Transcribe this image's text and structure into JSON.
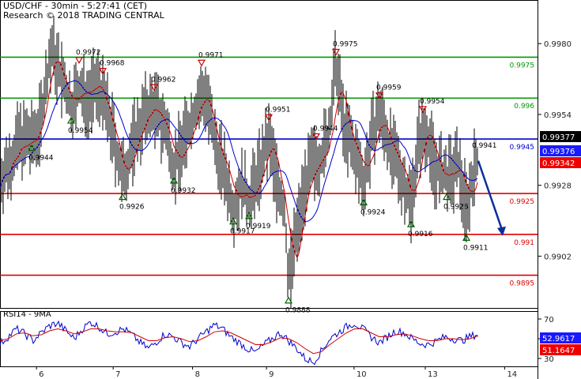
{
  "header": {
    "line1": "USD/CHF - 30min - 5:27:41 (CET)",
    "line2": "Research © 2018 TRADING CENTRAL"
  },
  "rsi_label": "RSI14 - 9MA",
  "colors": {
    "support": "#e00000",
    "resistance": "#009900",
    "pivot": "#0000cc",
    "price": "#000000",
    "ma_fast": "#cc0000",
    "ma_slow": "#0000cc",
    "marker_down": "#cc0000",
    "marker_up": "#006600",
    "arrow": "#0b2f9a",
    "badge_last": "#000000",
    "badge_blue": "#1a1aff",
    "badge_red": "#ee0000"
  },
  "chart_data": [
    {
      "type": "line",
      "name": "price",
      "x_ticks": [
        "6",
        "7",
        "8",
        "9",
        "10",
        "13",
        "14"
      ],
      "y_ticks": [
        "0.9980",
        "0.9954",
        "0.9928",
        "0.9902"
      ],
      "ylim": [
        0.9883,
        0.9996
      ],
      "levels": [
        {
          "value": 0.9975,
          "label": "0.9975",
          "kind": "resistance"
        },
        {
          "value": 0.996,
          "label": "0.996",
          "kind": "resistance"
        },
        {
          "value": 0.9945,
          "label": "0.9945",
          "kind": "pivot"
        },
        {
          "value": 0.9925,
          "label": "0.9925",
          "kind": "support"
        },
        {
          "value": 0.991,
          "label": "0.991",
          "kind": "support"
        },
        {
          "value": 0.9895,
          "label": "0.9895",
          "kind": "support"
        }
      ],
      "markers": [
        {
          "x": 1.0,
          "value": 0.9972,
          "label": "0.9972",
          "dir": "down"
        },
        {
          "x": 1.3,
          "value": 0.9968,
          "label": "0.9968",
          "dir": "down"
        },
        {
          "x": 0.9,
          "value": 0.9954,
          "label": "0.9954",
          "dir": "up"
        },
        {
          "x": 0.4,
          "value": 0.9944,
          "label": "0.9944",
          "dir": "up"
        },
        {
          "x": 1.55,
          "value": 0.9926,
          "label": "0.9926",
          "dir": "up"
        },
        {
          "x": 1.95,
          "value": 0.9962,
          "label": "0.9962",
          "dir": "down"
        },
        {
          "x": 2.2,
          "value": 0.9932,
          "label": "0.9932",
          "dir": "up"
        },
        {
          "x": 2.55,
          "value": 0.9971,
          "label": "0.9971",
          "dir": "down"
        },
        {
          "x": 2.95,
          "value": 0.9917,
          "label": "0.9917",
          "dir": "up"
        },
        {
          "x": 3.15,
          "value": 0.9919,
          "label": "0.9919",
          "dir": "up"
        },
        {
          "x": 3.4,
          "value": 0.9951,
          "label": "0.9951",
          "dir": "down"
        },
        {
          "x": 3.65,
          "value": 0.9888,
          "label": "0.9888",
          "dir": "up"
        },
        {
          "x": 4.0,
          "value": 0.9944,
          "label": "0.9944",
          "dir": "down"
        },
        {
          "x": 4.25,
          "value": 0.9975,
          "label": "0.9975",
          "dir": "down"
        },
        {
          "x": 4.6,
          "value": 0.9924,
          "label": "0.9924",
          "dir": "up"
        },
        {
          "x": 4.8,
          "value": 0.9959,
          "label": "0.9959",
          "dir": "down"
        },
        {
          "x": 5.2,
          "value": 0.9916,
          "label": "0.9916",
          "dir": "up"
        },
        {
          "x": 5.35,
          "value": 0.9954,
          "label": "0.9954",
          "dir": "down"
        },
        {
          "x": 5.65,
          "value": 0.9926,
          "label": "0.9926",
          "dir": "up"
        },
        {
          "x": 5.9,
          "value": 0.9911,
          "label": "0.9911",
          "dir": "up"
        },
        {
          "x": 6.05,
          "value": 0.9941,
          "label": "0.9941",
          "dir": "none"
        }
      ],
      "price_path": [
        [
          0.0,
          0.993
        ],
        [
          0.1,
          0.9935
        ],
        [
          0.25,
          0.9945
        ],
        [
          0.4,
          0.9944
        ],
        [
          0.5,
          0.995
        ],
        [
          0.65,
          0.9978
        ],
        [
          0.8,
          0.9965
        ],
        [
          0.9,
          0.9957
        ],
        [
          1.0,
          0.9963
        ],
        [
          1.1,
          0.996
        ],
        [
          1.25,
          0.9965
        ],
        [
          1.4,
          0.995
        ],
        [
          1.55,
          0.993
        ],
        [
          1.7,
          0.9945
        ],
        [
          1.85,
          0.9955
        ],
        [
          1.95,
          0.9957
        ],
        [
          2.1,
          0.9948
        ],
        [
          2.2,
          0.9935
        ],
        [
          2.35,
          0.9946
        ],
        [
          2.5,
          0.9958
        ],
        [
          2.6,
          0.9962
        ],
        [
          2.7,
          0.9945
        ],
        [
          2.85,
          0.9932
        ],
        [
          2.95,
          0.992
        ],
        [
          3.05,
          0.9928
        ],
        [
          3.15,
          0.9922
        ],
        [
          3.3,
          0.9935
        ],
        [
          3.4,
          0.9945
        ],
        [
          3.5,
          0.993
        ],
        [
          3.6,
          0.9918
        ],
        [
          3.65,
          0.9893
        ],
        [
          3.75,
          0.991
        ],
        [
          3.85,
          0.9928
        ],
        [
          3.95,
          0.9935
        ],
        [
          4.05,
          0.9938
        ],
        [
          4.15,
          0.9945
        ],
        [
          4.25,
          0.9972
        ],
        [
          4.35,
          0.995
        ],
        [
          4.45,
          0.9942
        ],
        [
          4.6,
          0.993
        ],
        [
          4.7,
          0.9945
        ],
        [
          4.8,
          0.9955
        ],
        [
          4.95,
          0.994
        ],
        [
          5.1,
          0.993
        ],
        [
          5.2,
          0.9922
        ],
        [
          5.3,
          0.9945
        ],
        [
          5.4,
          0.9948
        ],
        [
          5.5,
          0.9935
        ],
        [
          5.65,
          0.993
        ],
        [
          5.8,
          0.9935
        ],
        [
          5.9,
          0.992
        ],
        [
          6.0,
          0.9934
        ],
        [
          6.05,
          0.9937
        ]
      ],
      "arrow": {
        "from": [
          6.05,
          0.9937
        ],
        "to": [
          6.35,
          0.991
        ]
      },
      "last_badges": [
        {
          "label": "0.99377",
          "kind": "last"
        },
        {
          "label": "0.99376",
          "kind": "blue"
        },
        {
          "label": "0.99342",
          "kind": "red"
        }
      ]
    },
    {
      "type": "line",
      "name": "RSI14 - 9MA",
      "y_ticks": [
        "70",
        "50",
        "30"
      ],
      "ylim": [
        22,
        78
      ],
      "series": [
        {
          "name": "RSI14",
          "values": [
            45,
            52,
            60,
            55,
            48,
            56,
            63,
            66,
            58,
            50,
            60,
            67,
            62,
            55,
            57,
            60,
            54,
            46,
            40,
            47,
            55,
            52,
            46,
            42,
            50,
            57,
            64,
            60,
            52,
            46,
            40,
            36,
            44,
            50,
            56,
            48,
            40,
            30,
            26,
            38,
            50,
            56,
            62,
            66,
            60,
            52,
            46,
            52,
            58,
            56,
            50,
            45,
            44,
            48,
            52,
            50,
            48,
            52,
            55
          ]
        },
        {
          "name": "9MA",
          "values": [
            48,
            50,
            55,
            56,
            53,
            54,
            58,
            60,
            58,
            55,
            57,
            60,
            60,
            58,
            57,
            57,
            56,
            52,
            48,
            48,
            51,
            52,
            50,
            47,
            48,
            52,
            57,
            58,
            56,
            52,
            48,
            44,
            44,
            47,
            51,
            50,
            46,
            40,
            35,
            37,
            44,
            50,
            56,
            60,
            60,
            56,
            52,
            52,
            54,
            55,
            53,
            50,
            48,
            48,
            50,
            50,
            49,
            50,
            53
          ]
        }
      ],
      "last_badges": [
        {
          "label": "52.9617",
          "kind": "blue"
        },
        {
          "label": "51.1647",
          "kind": "red"
        }
      ]
    }
  ]
}
